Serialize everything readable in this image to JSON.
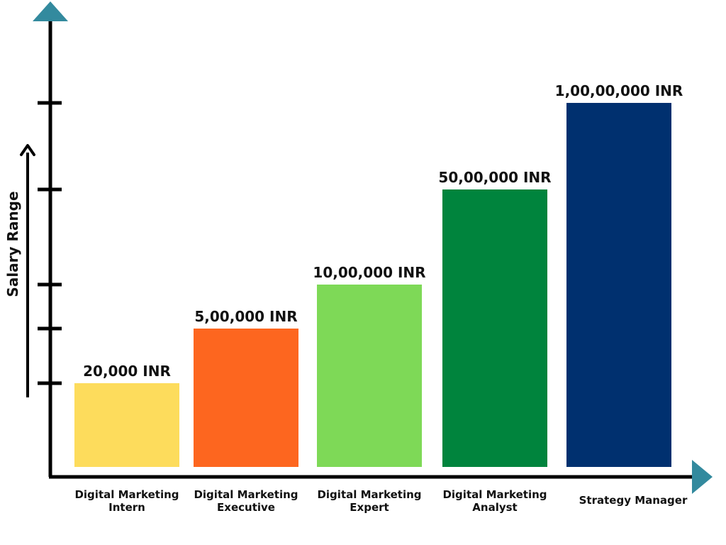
{
  "chart_data": {
    "type": "bar",
    "title": "",
    "xlabel": "",
    "ylabel": "Salary Range",
    "categories": [
      [
        "Digital Marketing",
        "Intern"
      ],
      [
        "Digital Marketing",
        "Executive"
      ],
      [
        "Digital Marketing",
        "Expert"
      ],
      [
        "Digital Marketing",
        "Analyst"
      ],
      [
        "Strategy Manager"
      ]
    ],
    "values": [
      20000,
      500000,
      1000000,
      5000000,
      10000000
    ],
    "value_labels": [
      "20,000 INR",
      "5,00,000 INR",
      "10,00,000 INR",
      "50,00,000 INR",
      "1,00,00,000 INR"
    ],
    "bar_colors": [
      "#FDDC5C",
      "#FD661F",
      "#7ED957",
      "#00843D",
      "#00306F"
    ],
    "axis_color": "#000000",
    "arrow_color": "#338A9E",
    "grid": false,
    "legend": "none"
  }
}
